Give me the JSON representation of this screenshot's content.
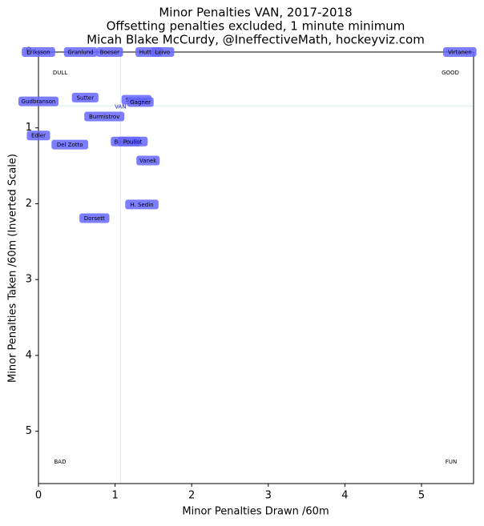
{
  "chart_data": {
    "type": "scatter",
    "title": "Minor Penalties VAN, 2017-2018",
    "subtitle": "Offsetting penalties excluded, 1 minute minimum",
    "credit": "Micah Blake McCurdy, @IneffectiveMath, hockeyviz.com",
    "x_label": "Minor Penalties Drawn /60m",
    "y_label": "Minor Penalties Taken /60m (Inverted Scale)",
    "xlim": [
      0,
      5.68
    ],
    "ylim": [
      0,
      5.69
    ],
    "y_inverted": true,
    "xticks": [
      0,
      1,
      2,
      3,
      4,
      5
    ],
    "yticks": [
      0,
      1,
      2,
      3,
      4,
      5
    ],
    "color": "#6666ff",
    "team": {
      "label": "VAN",
      "x": 1.07,
      "y": 0.71
    },
    "corners": [
      {
        "label": "DULL",
        "corner": "top-left"
      },
      {
        "label": "GOOD",
        "corner": "top-right"
      },
      {
        "label": "BAD",
        "corner": "bottom-left"
      },
      {
        "label": "FUN",
        "corner": "bottom-right"
      }
    ],
    "points": [
      {
        "name": "Eriksson",
        "x": 0.0,
        "y": 0.0
      },
      {
        "name": "Granlund",
        "x": 0.55,
        "y": 0.0
      },
      {
        "name": "Boeser",
        "x": 0.93,
        "y": 0.0
      },
      {
        "name": "Hutton",
        "x": 1.44,
        "y": 0.0
      },
      {
        "name": "Leivo",
        "x": 1.62,
        "y": 0.0
      },
      {
        "name": "Virtanen",
        "x": 5.5,
        "y": 0.0
      },
      {
        "name": "Sutter",
        "x": 0.61,
        "y": 0.6
      },
      {
        "name": "Gudbranson",
        "x": 0.0,
        "y": 0.65
      },
      {
        "name": "Stecher",
        "x": 1.28,
        "y": 0.63
      },
      {
        "name": "Gagner",
        "x": 1.33,
        "y": 0.66
      },
      {
        "name": "Burmistrov",
        "x": 0.86,
        "y": 0.85
      },
      {
        "name": "Edler",
        "x": 0.0,
        "y": 1.1
      },
      {
        "name": "Del Zotto",
        "x": 0.41,
        "y": 1.22
      },
      {
        "name": "Boucher",
        "x": 1.14,
        "y": 1.18
      },
      {
        "name": "Pouliot",
        "x": 1.23,
        "y": 1.18
      },
      {
        "name": "Vanek",
        "x": 1.43,
        "y": 1.43
      },
      {
        "name": "H. Sedin",
        "x": 1.35,
        "y": 2.01
      },
      {
        "name": "Dorsett",
        "x": 0.73,
        "y": 2.19
      }
    ]
  }
}
